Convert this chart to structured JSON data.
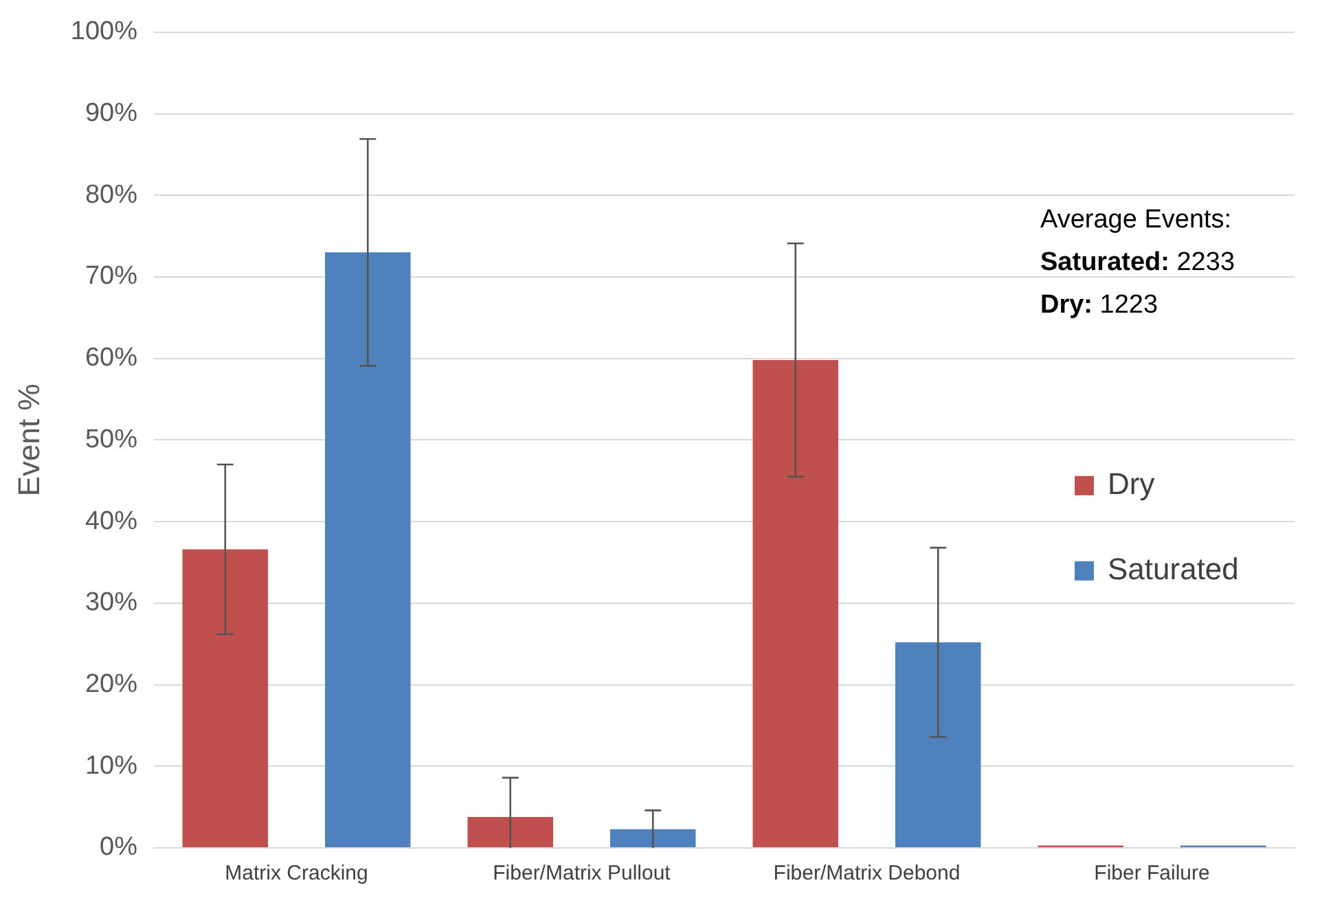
{
  "chart_data": {
    "type": "bar",
    "ylabel": "Event %",
    "categories": [
      "Matrix Cracking",
      "Fiber/Matrix Pullout",
      "Fiber/Matrix Debond",
      "Fiber Failure"
    ],
    "series": [
      {
        "name": "Dry",
        "color": "#c0504d",
        "values": [
          36.6,
          3.8,
          59.8,
          0.3
        ],
        "errors": [
          10.4,
          [
            0,
            8.6
          ],
          14.3,
          null
        ]
      },
      {
        "name": "Saturated",
        "color": "#4f81bd",
        "values": [
          73.0,
          2.3,
          25.2,
          0.3
        ],
        "errors": [
          13.9,
          2.3,
          11.6,
          null
        ]
      }
    ],
    "ylim": [
      0,
      100
    ],
    "yticks": [
      {
        "value": 0,
        "label": "0%"
      },
      {
        "value": 10,
        "label": "10%"
      },
      {
        "value": 20,
        "label": "20%"
      },
      {
        "value": 30,
        "label": "30%"
      },
      {
        "value": 40,
        "label": "40%"
      },
      {
        "value": 50,
        "label": "50%"
      },
      {
        "value": 60,
        "label": "60%"
      },
      {
        "value": 70,
        "label": "70%"
      },
      {
        "value": 80,
        "label": "80%"
      },
      {
        "value": 90,
        "label": "90%"
      },
      {
        "value": 100,
        "label": "100%"
      }
    ],
    "grid": "y",
    "legend": "right",
    "annotations": [
      "Average Events:",
      "Saturated: 2233",
      "Dry: 1223"
    ]
  }
}
